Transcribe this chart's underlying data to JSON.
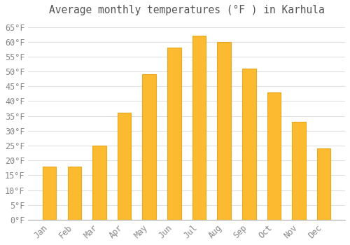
{
  "title": "Average monthly temperatures (°F ) in Karhula",
  "months": [
    "Jan",
    "Feb",
    "Mar",
    "Apr",
    "May",
    "Jun",
    "Jul",
    "Aug",
    "Sep",
    "Oct",
    "Nov",
    "Dec"
  ],
  "values": [
    18,
    18,
    25,
    36,
    49,
    58,
    62,
    60,
    51,
    43,
    33,
    24
  ],
  "bar_color": "#FBBA30",
  "bar_edge_color": "#E8A820",
  "background_color": "#FFFFFF",
  "grid_color": "#E0E0E0",
  "text_color": "#888888",
  "title_color": "#555555",
  "ylim": [
    0,
    67
  ],
  "yticks": [
    0,
    5,
    10,
    15,
    20,
    25,
    30,
    35,
    40,
    45,
    50,
    55,
    60,
    65
  ],
  "ylabel_suffix": "°F",
  "title_fontsize": 10.5,
  "tick_fontsize": 8.5,
  "bar_width": 0.55
}
